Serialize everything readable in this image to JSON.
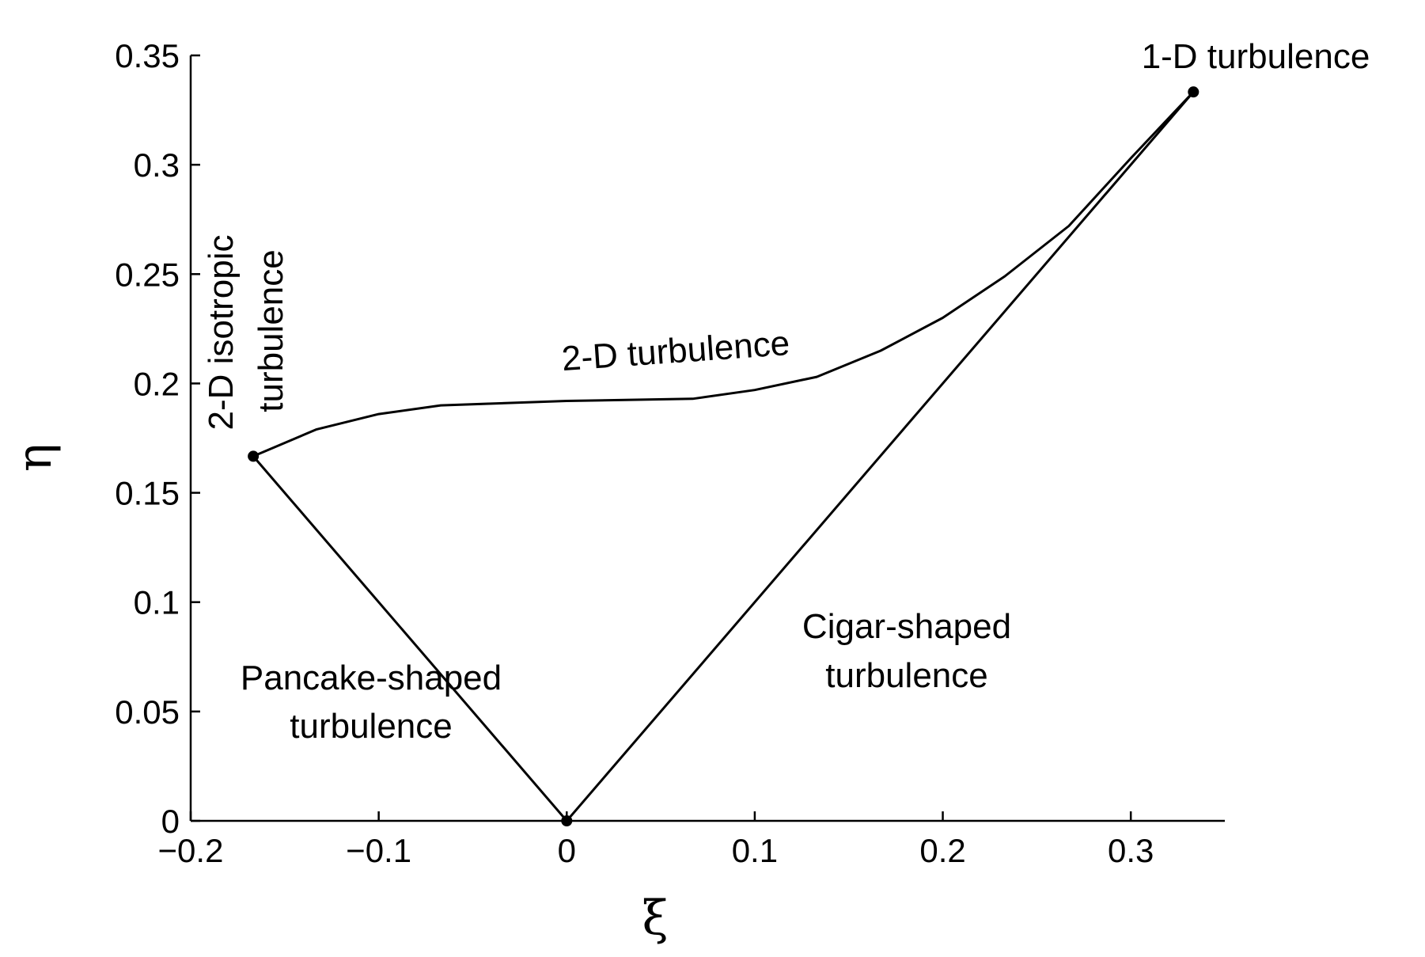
{
  "chart_data": {
    "type": "line",
    "title": "",
    "xlabel": "ξ",
    "ylabel": "η",
    "xlim": [
      -0.2,
      0.35
    ],
    "ylim": [
      0,
      0.35
    ],
    "x_ticks": [
      -0.2,
      -0.1,
      0,
      0.1,
      0.2,
      0.3
    ],
    "x_tick_labels": [
      "−0.2",
      "−0.1",
      "0",
      "0.1",
      "0.2",
      "0.3"
    ],
    "y_ticks": [
      0,
      0.05,
      0.1,
      0.15,
      0.2,
      0.25,
      0.3,
      0.35
    ],
    "y_tick_labels": [
      "0",
      "0.05",
      "0.1",
      "0.15",
      "0.2",
      "0.25",
      "0.3",
      "0.35"
    ],
    "grid": false,
    "series": [
      {
        "x": [
          -0.1667,
          0
        ],
        "y": [
          0.1667,
          0
        ]
      },
      {
        "x": [
          0,
          0.3333
        ],
        "y": [
          0,
          0.3333
        ]
      },
      {
        "x": [
          -0.1667,
          -0.133,
          -0.1,
          -0.067,
          0,
          0.067,
          0.1,
          0.133,
          0.167,
          0.2,
          0.233,
          0.267,
          0.3,
          0.3333
        ],
        "y": [
          0.1667,
          0.179,
          0.186,
          0.19,
          0.192,
          0.193,
          0.197,
          0.203,
          0.215,
          0.23,
          0.249,
          0.272,
          0.303,
          0.3333
        ]
      }
    ],
    "points": [
      {
        "x": -0.1667,
        "y": 0.1667
      },
      {
        "x": 0,
        "y": 0
      },
      {
        "x": 0.3333,
        "y": 0.3333
      }
    ],
    "annotations": [
      {
        "text": "1-D turbulence"
      },
      {
        "text": "2-D turbulence"
      },
      {
        "text": "2-D isotropic"
      },
      {
        "text": "turbulence"
      },
      {
        "text": "Pancake-shaped"
      },
      {
        "text": "turbulence"
      },
      {
        "text": "Cigar-shaped"
      },
      {
        "text": "turbulence"
      }
    ]
  }
}
